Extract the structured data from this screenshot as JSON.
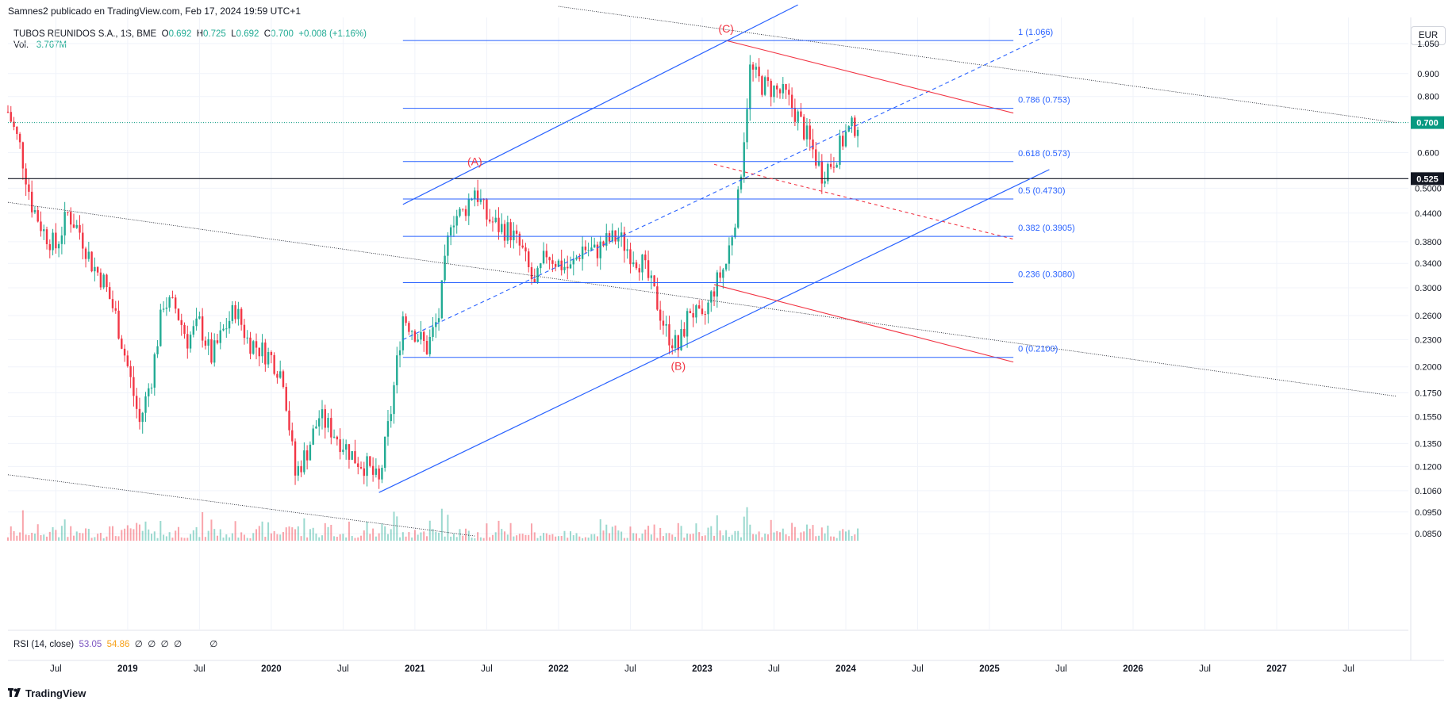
{
  "header": {
    "publisher": "Samnes2 publicado en TradingView.com, Feb 17, 2024 19:59 UTC+1"
  },
  "legend": {
    "symbol": "TUBOS REUNIDOS S.A., 1S, BME",
    "o_label": "O",
    "o": "0.692",
    "h_label": "H",
    "h": "0.725",
    "l_label": "L",
    "l": "0.692",
    "c_label": "C",
    "c": "0.700",
    "change": "+0.008 (+1.16%)",
    "vol_label": "Vol.",
    "vol_value": "3.767M"
  },
  "rsi": {
    "label": "RSI (14, close)",
    "value1": "53.05",
    "value2": "54.86",
    "empties": [
      "∅",
      "∅",
      "∅",
      "∅",
      "∅"
    ]
  },
  "currency_button": "EUR",
  "footer": {
    "brand": "TradingView"
  },
  "colors": {
    "up": "#22ab94",
    "down": "#f23645",
    "fib": "#2962ff",
    "elliott": "#f23645",
    "last_price": "#089981",
    "black_line": "#131722"
  },
  "chart_data": {
    "type": "candlestick",
    "scale": "log",
    "y_range": [
      0.082,
      1.2
    ],
    "x_range": [
      "2018-03",
      "2027-12"
    ],
    "y_ticks": [
      "1.050",
      "0.900",
      "0.800",
      "0.600",
      "0.5000",
      "0.4400",
      "0.3800",
      "0.3400",
      "0.3000",
      "0.2600",
      "0.2300",
      "0.2000",
      "0.1750",
      "0.1550",
      "0.1350",
      "0.1200",
      "0.1060",
      "0.0950",
      "0.0850"
    ],
    "x_ticks": [
      "Jul",
      "2019",
      "Jul",
      "2020",
      "Jul",
      "2021",
      "Jul",
      "2022",
      "Jul",
      "2023",
      "Jul",
      "2024",
      "Jul",
      "2025",
      "Jul",
      "2026",
      "Jul",
      "2027",
      "Jul"
    ],
    "last_price": "0.700",
    "horizontal_level": "0.525",
    "fibonacci": [
      {
        "label": "1 (1.066)",
        "value": 1.066
      },
      {
        "label": "0.786 (0.753)",
        "value": 0.753
      },
      {
        "label": "0.618 (0.573)",
        "value": 0.573
      },
      {
        "label": "0.5 (0.4730)",
        "value": 0.473
      },
      {
        "label": "0.382 (0.3905)",
        "value": 0.3905
      },
      {
        "label": "0.236 (0.3080)",
        "value": 0.308
      },
      {
        "label": "0 (0.2100)",
        "value": 0.21
      }
    ],
    "waves": [
      {
        "label": "(A)",
        "date": "2021-06",
        "value": 0.54
      },
      {
        "label": "(B)",
        "date": "2022-11",
        "value": 0.21
      },
      {
        "label": "(C)",
        "date": "2023-03",
        "value": 1.066
      }
    ],
    "price_path": [
      [
        "2018-03",
        0.74
      ],
      [
        "2018-04",
        0.62
      ],
      [
        "2018-05",
        0.46
      ],
      [
        "2018-06",
        0.4
      ],
      [
        "2018-07",
        0.37
      ],
      [
        "2018-08",
        0.44
      ],
      [
        "2018-09",
        0.4
      ],
      [
        "2018-10",
        0.34
      ],
      [
        "2018-11",
        0.31
      ],
      [
        "2018-12",
        0.26
      ],
      [
        "2019-01",
        0.2
      ],
      [
        "2019-02",
        0.15
      ],
      [
        "2019-03",
        0.19
      ],
      [
        "2019-04",
        0.28
      ],
      [
        "2019-05",
        0.27
      ],
      [
        "2019-06",
        0.23
      ],
      [
        "2019-07",
        0.25
      ],
      [
        "2019-08",
        0.21
      ],
      [
        "2019-09",
        0.24
      ],
      [
        "2019-10",
        0.27
      ],
      [
        "2019-11",
        0.23
      ],
      [
        "2019-12",
        0.22
      ],
      [
        "2020-01",
        0.21
      ],
      [
        "2020-02",
        0.19
      ],
      [
        "2020-03",
        0.115
      ],
      [
        "2020-04",
        0.13
      ],
      [
        "2020-05",
        0.155
      ],
      [
        "2020-06",
        0.145
      ],
      [
        "2020-07",
        0.135
      ],
      [
        "2020-08",
        0.125
      ],
      [
        "2020-09",
        0.12
      ],
      [
        "2020-10",
        0.11
      ],
      [
        "2020-11",
        0.16
      ],
      [
        "2020-12",
        0.26
      ],
      [
        "2021-01",
        0.24
      ],
      [
        "2021-02",
        0.22
      ],
      [
        "2021-03",
        0.26
      ],
      [
        "2021-04",
        0.43
      ],
      [
        "2021-05",
        0.44
      ],
      [
        "2021-06",
        0.5
      ],
      [
        "2021-07",
        0.43
      ],
      [
        "2021-08",
        0.41
      ],
      [
        "2021-09",
        0.4
      ],
      [
        "2021-10",
        0.36
      ],
      [
        "2021-11",
        0.3
      ],
      [
        "2021-12",
        0.36
      ],
      [
        "2022-01",
        0.34
      ],
      [
        "2022-02",
        0.33
      ],
      [
        "2022-03",
        0.37
      ],
      [
        "2022-04",
        0.36
      ],
      [
        "2022-05",
        0.38
      ],
      [
        "2022-06",
        0.39
      ],
      [
        "2022-07",
        0.36
      ],
      [
        "2022-08",
        0.34
      ],
      [
        "2022-09",
        0.29
      ],
      [
        "2022-10",
        0.24
      ],
      [
        "2022-11",
        0.22
      ],
      [
        "2022-12",
        0.27
      ],
      [
        "2023-01",
        0.25
      ],
      [
        "2023-02",
        0.3
      ],
      [
        "2023-03",
        0.34
      ],
      [
        "2023-04",
        0.47
      ],
      [
        "2023-05",
        0.92
      ],
      [
        "2023-06",
        0.85
      ],
      [
        "2023-07",
        0.83
      ],
      [
        "2023-08",
        0.8
      ],
      [
        "2023-09",
        0.72
      ],
      [
        "2023-10",
        0.63
      ],
      [
        "2023-11",
        0.54
      ],
      [
        "2023-12",
        0.58
      ],
      [
        "2024-01",
        0.66
      ],
      [
        "2024-02",
        0.7
      ]
    ]
  }
}
